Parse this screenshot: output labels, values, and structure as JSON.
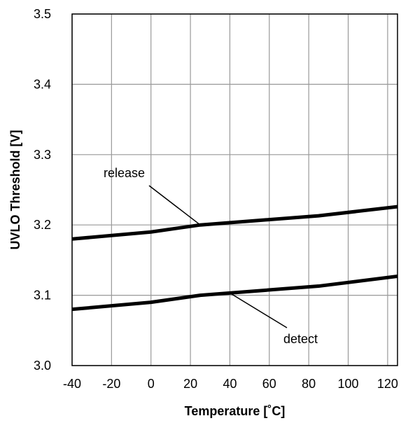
{
  "chart_data": {
    "type": "line",
    "title": "",
    "xlabel": "Temperature [˚C]",
    "ylabel": "UVLO Threshold [V]",
    "xlim": [
      -40,
      125
    ],
    "ylim": [
      3.0,
      3.5
    ],
    "x_ticks": [
      -40,
      -20,
      0,
      20,
      40,
      60,
      80,
      100,
      120
    ],
    "x_tick_labels": [
      "-40",
      "-20",
      "0",
      "20",
      "40",
      "60",
      "80",
      "100",
      "120"
    ],
    "y_ticks": [
      3.0,
      3.1,
      3.2,
      3.3,
      3.4,
      3.5
    ],
    "y_tick_labels": [
      "3.0",
      "3.1",
      "3.2",
      "3.3",
      "3.4",
      "3.5"
    ],
    "grid": true,
    "legend": "none",
    "line_color": "#000000",
    "grid_color": "#999999",
    "series": [
      {
        "name": "release",
        "x": [
          -40,
          0,
          25,
          85,
          125
        ],
        "y": [
          3.18,
          3.19,
          3.2,
          3.213,
          3.226
        ]
      },
      {
        "name": "detect",
        "x": [
          -40,
          0,
          25,
          85,
          125
        ],
        "y": [
          3.08,
          3.09,
          3.1,
          3.113,
          3.127
        ]
      }
    ],
    "annotations": [
      {
        "text": "release",
        "series": "release",
        "at_x": 25
      },
      {
        "text": "detect",
        "series": "detect",
        "at_x": 40
      }
    ]
  }
}
